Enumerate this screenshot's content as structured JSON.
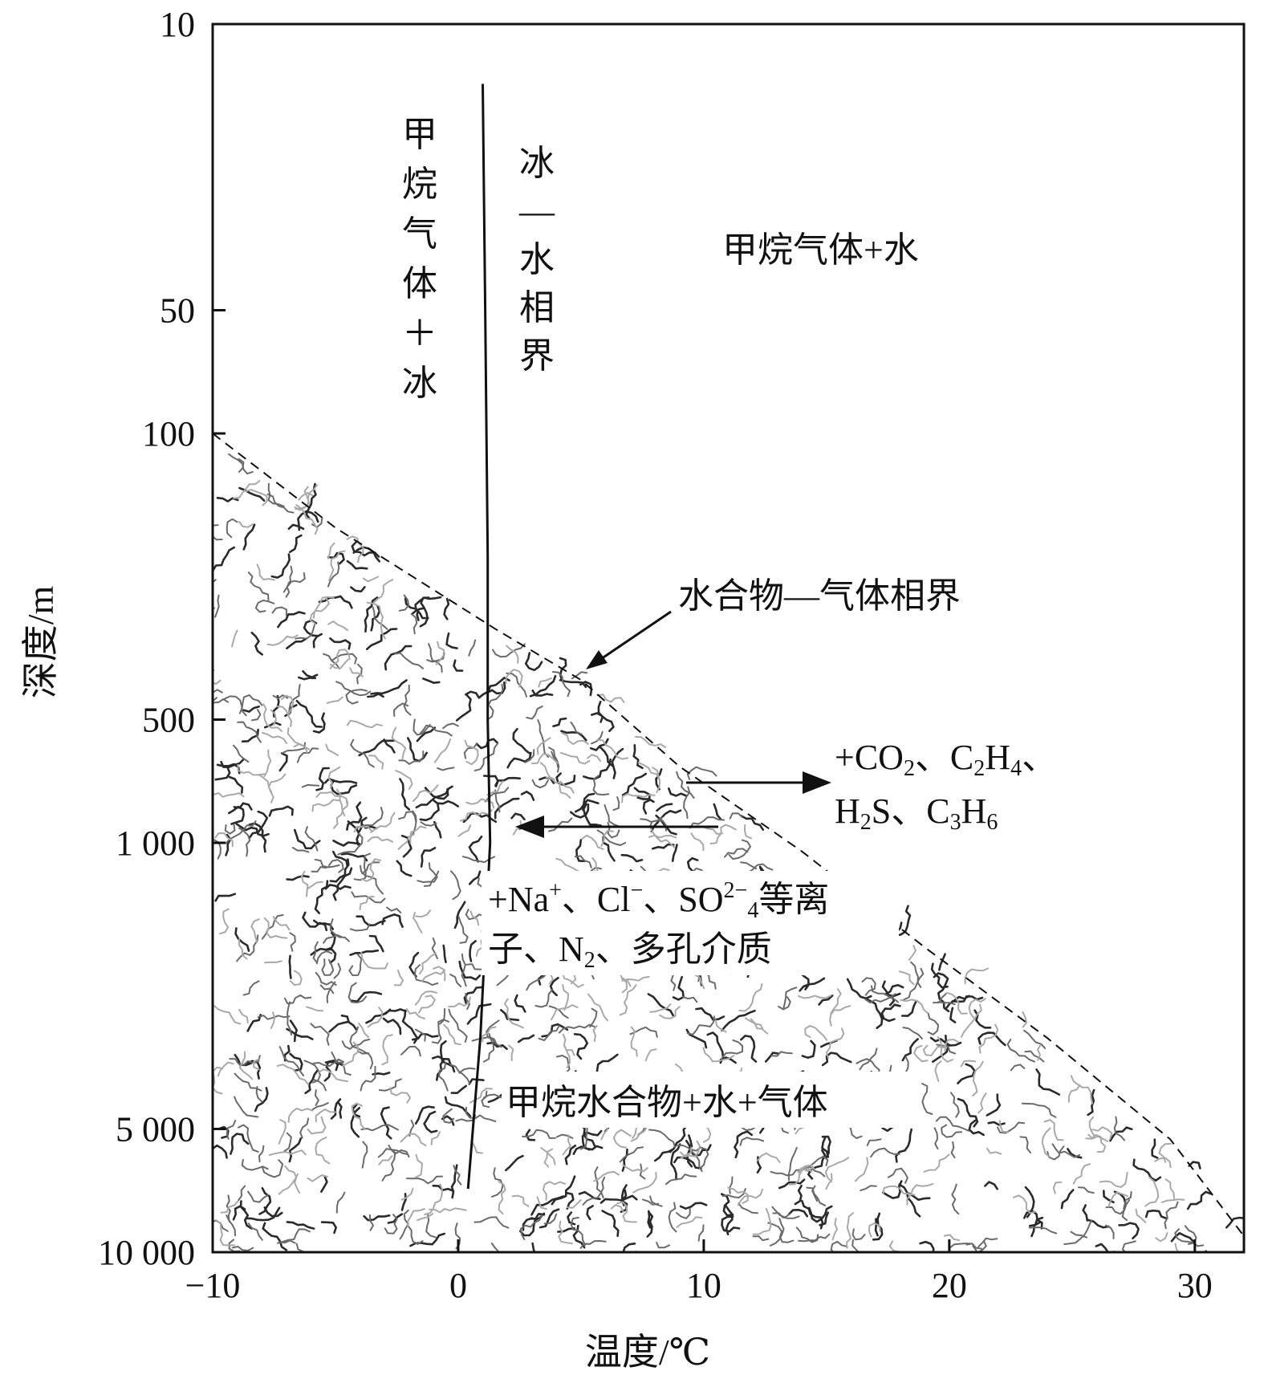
{
  "chart_data": {
    "type": "area",
    "title": "",
    "xlabel": "温度/℃",
    "ylabel": "深度/m",
    "xlim": [
      -10,
      32
    ],
    "ylim": [
      10,
      10000
    ],
    "yscale": "log",
    "xticks": [
      {
        "value": -10,
        "label": "−10"
      },
      {
        "value": 0,
        "label": "0"
      },
      {
        "value": 10,
        "label": "10"
      },
      {
        "value": 20,
        "label": "20"
      },
      {
        "value": 30,
        "label": "30"
      }
    ],
    "yticks": [
      {
        "value": 10,
        "label": "10"
      },
      {
        "value": 50,
        "label": "50"
      },
      {
        "value": 100,
        "label": "100"
      },
      {
        "value": 500,
        "label": "500"
      },
      {
        "value": 1000,
        "label": "1 000"
      },
      {
        "value": 5000,
        "label": "5 000"
      },
      {
        "value": 10000,
        "label": "10 000"
      }
    ],
    "series": [
      {
        "name": "冰—水相界",
        "style": "solid",
        "points": [
          [
            1.0,
            14
          ],
          [
            1.1,
            50
          ],
          [
            1.2,
            200
          ],
          [
            1.2,
            500
          ],
          [
            1.3,
            1000
          ],
          [
            0.9,
            3000
          ],
          [
            0.4,
            7000
          ]
        ]
      },
      {
        "name": "水合物—气体相界",
        "style": "dashed",
        "points": [
          [
            -10,
            100
          ],
          [
            -5,
            170
          ],
          [
            1.5,
            300
          ],
          [
            5,
            400
          ],
          [
            9,
            650
          ],
          [
            14,
            1050
          ],
          [
            19,
            1800
          ],
          [
            24,
            3000
          ],
          [
            29,
            5300
          ],
          [
            32.5,
            10000
          ]
        ]
      }
    ],
    "regions": [
      {
        "label": "甲烷气体＋冰"
      },
      {
        "label": "甲烷气体+水"
      },
      {
        "label": "甲烷水合物+水+气体",
        "fill": "stippled"
      }
    ],
    "annotations": {
      "ice_water": [
        "冰",
        "—",
        "水",
        "相",
        "界"
      ],
      "gas_ice": [
        "甲",
        "烷",
        "气",
        "体",
        "＋",
        "冰"
      ],
      "gas_water": "甲烷气体+水",
      "hydrate_boundary": "水合物—气体相界",
      "hydrate_region": "甲烷水合物+水+气体",
      "gases": {
        "line1": [
          [
            "+CO",
            false
          ],
          [
            "2",
            true
          ],
          [
            "、C",
            false
          ],
          [
            "2",
            true
          ],
          [
            "H",
            false
          ],
          [
            "4",
            true
          ],
          [
            "、",
            false
          ]
        ],
        "line2": [
          [
            "H",
            false
          ],
          [
            "2",
            true
          ],
          [
            "S、C",
            false
          ],
          [
            "3",
            true
          ],
          [
            "H",
            false
          ],
          [
            "6",
            true
          ]
        ]
      },
      "ions": {
        "line1": [
          [
            "+Na",
            false
          ],
          [
            "+",
            "sup"
          ],
          [
            "、Cl",
            false
          ],
          [
            "−",
            "sup"
          ],
          [
            "、SO",
            false
          ],
          [
            "2−",
            "sup"
          ],
          [
            "4",
            true
          ],
          [
            "等离",
            false
          ]
        ],
        "line2": [
          [
            "子、N",
            false
          ],
          [
            "2",
            true
          ],
          [
            "、多孔介质",
            false
          ]
        ]
      }
    },
    "colors": {
      "line": "#111111",
      "stipple_dark": "#2a2a2a",
      "stipple_mid": "#6a6a6a",
      "stipple_light": "#a8a8a8"
    }
  }
}
